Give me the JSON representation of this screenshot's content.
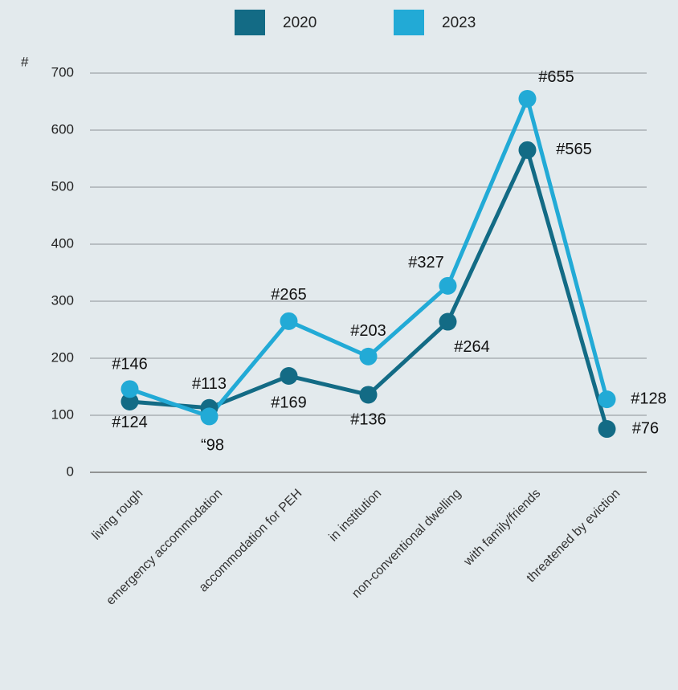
{
  "chart_data": {
    "type": "line",
    "y_label": "#",
    "categories": [
      "living rough",
      "emergency accommodation",
      "accommodation for PEH",
      "in institution",
      "non-conventional dwelling",
      "with family/friends",
      "threatened by eviction"
    ],
    "series": [
      {
        "name": "2020",
        "color": "#136b85",
        "values": [
          124,
          113,
          169,
          136,
          264,
          565,
          76
        ],
        "value_labels": [
          "#124",
          "#113",
          "#169",
          "#136",
          "#264",
          "#565",
          "#76"
        ]
      },
      {
        "name": "2023",
        "color": "#22aad6",
        "values": [
          146,
          98,
          265,
          203,
          327,
          655,
          128
        ],
        "value_labels": [
          "#146",
          "“98",
          "#265",
          "#203",
          "#327",
          "#655",
          "#128"
        ]
      }
    ],
    "ylim": [
      0,
      700
    ],
    "yticks": [
      0,
      100,
      200,
      300,
      400,
      500,
      600,
      700
    ],
    "grid": true
  }
}
